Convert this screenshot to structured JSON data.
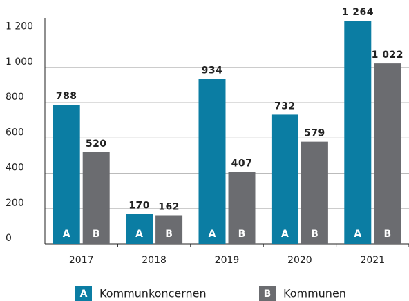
{
  "chart_data": {
    "type": "bar",
    "categories": [
      "2017",
      "2018",
      "2019",
      "2020",
      "2021"
    ],
    "series": [
      {
        "name": "Kommunkoncernen",
        "marker": "A",
        "color": "#0b7da3",
        "values": [
          788,
          170,
          934,
          732,
          1264
        ],
        "value_labels": [
          "788",
          "170",
          "934",
          "732",
          "1 264"
        ]
      },
      {
        "name": "Kommunen",
        "marker": "B",
        "color": "#6b6c70",
        "values": [
          520,
          162,
          407,
          579,
          1022
        ],
        "value_labels": [
          "520",
          "162",
          "407",
          "579",
          "1 022"
        ]
      }
    ],
    "ylim": [
      0,
      1280
    ],
    "yticks": [
      0,
      200,
      400,
      600,
      800,
      {
        "value": 1000,
        "label": "1 000"
      },
      {
        "value": 1200,
        "label": "1 200"
      }
    ],
    "grid": true
  }
}
